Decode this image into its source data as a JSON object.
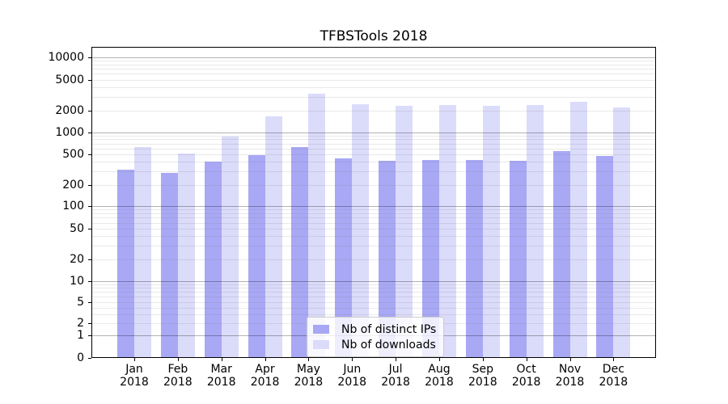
{
  "chart_data": {
    "type": "bar",
    "title": "TFBSTools 2018",
    "scale": "symlog",
    "grid": "horizontal major+minor",
    "legend_position": "lower center",
    "categories": [
      "Jan",
      "Feb",
      "Mar",
      "Apr",
      "May",
      "Jun",
      "Jul",
      "Aug",
      "Sep",
      "Oct",
      "Nov",
      "Dec"
    ],
    "year": "2018",
    "series": [
      {
        "name": "Nb of distinct IPs",
        "color": "#a8a8f5",
        "values": [
          320,
          290,
          400,
          480,
          620,
          440,
          410,
          420,
          420,
          410,
          550,
          470
        ]
      },
      {
        "name": "Nb of downloads",
        "color": "#dbdbfa",
        "values": [
          620,
          510,
          880,
          1650,
          3300,
          2400,
          2300,
          2350,
          2310,
          2330,
          2600,
          2200
        ]
      }
    ],
    "y_ticks": [
      0,
      1,
      2,
      5,
      10,
      20,
      50,
      100,
      200,
      500,
      1000,
      2000,
      5000,
      10000
    ],
    "ylim": [
      0,
      13000
    ],
    "xlabel": "",
    "ylabel": ""
  },
  "colors": {
    "major_gridline": "#b3b3b3",
    "minor_gridline": "#e8e8e8",
    "axis": "#000000",
    "background": "#ffffff"
  }
}
